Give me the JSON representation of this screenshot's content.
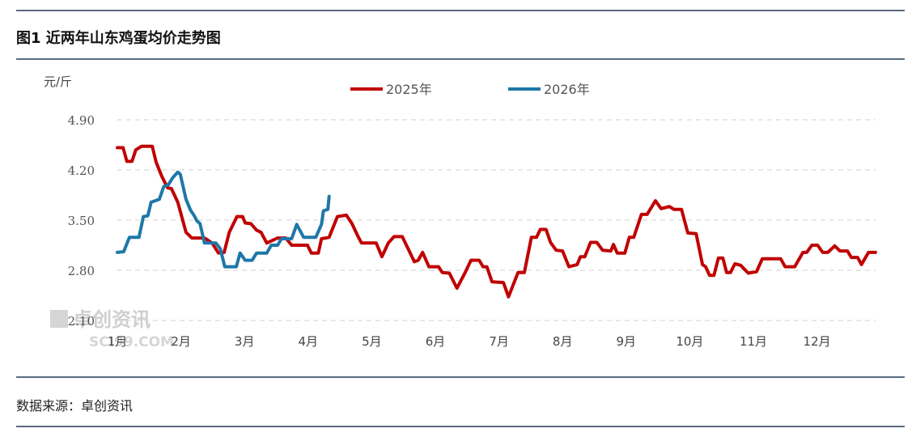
{
  "header": {
    "title": "图1 近两年山东鸡蛋均价走势图"
  },
  "footer": {
    "source": "数据来源：卓创资讯"
  },
  "watermark": {
    "text": "卓创资讯",
    "sub": "SCI99.COM"
  },
  "chart_data": {
    "type": "line",
    "title": "近两年山东鸡蛋均价走势图",
    "ylabel": "元/斤",
    "xlabel": "",
    "ylim": [
      2.1,
      4.9
    ],
    "yticks": [
      "4.90",
      "4.20",
      "3.50",
      "2.80",
      "2.10"
    ],
    "ytick_values": [
      4.9,
      4.2,
      3.5,
      2.8,
      2.1
    ],
    "x_unit": "months since start of January (0 = 1月)",
    "xlim": [
      0,
      11.95
    ],
    "categories": [
      "1月",
      "2月",
      "3月",
      "4月",
      "5月",
      "6月",
      "7月",
      "8月",
      "9月",
      "10月",
      "11月",
      "12月"
    ],
    "grid": true,
    "legend_position": "top-center",
    "series": [
      {
        "name": "2025年",
        "color": "#c00000",
        "x": [
          0,
          0.09,
          0.15,
          0.23,
          0.29,
          0.38,
          0.55,
          0.61,
          0.7,
          0.79,
          0.85,
          0.95,
          1.08,
          1.17,
          1.37,
          1.49,
          1.59,
          1.68,
          1.76,
          1.88,
          1.97,
          2.01,
          2.1,
          2.19,
          2.26,
          2.35,
          2.52,
          2.65,
          2.74,
          2.99,
          3.05,
          3.16,
          3.21,
          3.33,
          3.46,
          3.6,
          3.69,
          3.78,
          3.84,
          4.07,
          4.16,
          4.26,
          4.35,
          4.48,
          4.54,
          4.67,
          4.73,
          4.8,
          4.9,
          5.05,
          5.11,
          5.22,
          5.34,
          5.47,
          5.56,
          5.69,
          5.75,
          5.81,
          5.89,
          6.07,
          6.15,
          6.3,
          6.4,
          6.51,
          6.59,
          6.65,
          6.74,
          6.81,
          6.9,
          7.0,
          7.1,
          7.23,
          7.28,
          7.35,
          7.44,
          7.54,
          7.63,
          7.76,
          7.8,
          7.86,
          7.98,
          8.05,
          8.12,
          8.24,
          8.33,
          8.46,
          8.55,
          8.68,
          8.75,
          8.87,
          8.97,
          9.1,
          9.2,
          9.25,
          9.31,
          9.38,
          9.45,
          9.52,
          9.58,
          9.64,
          9.71,
          9.8,
          9.92,
          10.05,
          10.14,
          10.43,
          10.5,
          10.65,
          10.78,
          10.84,
          10.92,
          11.01,
          11.09,
          11.17,
          11.28,
          11.36,
          11.48,
          11.54,
          11.64,
          11.7,
          11.81,
          11.92
        ],
        "values": [
          4.51,
          4.51,
          4.32,
          4.32,
          4.48,
          4.53,
          4.53,
          4.31,
          4.11,
          3.95,
          3.94,
          3.75,
          3.33,
          3.25,
          3.25,
          3.18,
          3.04,
          3.05,
          3.33,
          3.55,
          3.55,
          3.46,
          3.45,
          3.36,
          3.33,
          3.18,
          3.25,
          3.25,
          3.15,
          3.15,
          3.04,
          3.04,
          3.24,
          3.26,
          3.55,
          3.57,
          3.45,
          3.28,
          3.18,
          3.18,
          2.99,
          3.18,
          3.27,
          3.27,
          3.16,
          2.92,
          2.94,
          3.05,
          2.85,
          2.85,
          2.77,
          2.76,
          2.55,
          2.77,
          2.94,
          2.94,
          2.85,
          2.85,
          2.64,
          2.63,
          2.43,
          2.77,
          2.77,
          3.26,
          3.26,
          3.37,
          3.37,
          3.19,
          3.08,
          3.07,
          2.85,
          2.88,
          2.99,
          2.99,
          3.19,
          3.19,
          3.08,
          3.07,
          3.16,
          3.04,
          3.04,
          3.26,
          3.26,
          3.58,
          3.58,
          3.77,
          3.66,
          3.69,
          3.65,
          3.65,
          3.32,
          3.31,
          2.88,
          2.85,
          2.73,
          2.73,
          2.97,
          2.97,
          2.77,
          2.77,
          2.89,
          2.87,
          2.76,
          2.78,
          2.96,
          2.96,
          2.85,
          2.85,
          3.05,
          3.05,
          3.15,
          3.15,
          3.05,
          3.05,
          3.14,
          3.07,
          3.07,
          2.98,
          2.98,
          2.88,
          3.05,
          3.05
        ]
      },
      {
        "name": "2026年",
        "color": "#1f77a8",
        "x": [
          0,
          0.1,
          0.19,
          0.34,
          0.41,
          0.48,
          0.53,
          0.66,
          0.73,
          0.8,
          0.87,
          0.95,
          0.99,
          1.08,
          1.15,
          1.21,
          1.25,
          1.3,
          1.37,
          1.55,
          1.62,
          1.69,
          1.87,
          1.93,
          2.01,
          2.12,
          2.19,
          2.35,
          2.42,
          2.52,
          2.58,
          2.74,
          2.82,
          2.93,
          3.12,
          3.21,
          3.24,
          3.31,
          3.33
        ],
        "values": [
          3.05,
          3.06,
          3.26,
          3.26,
          3.55,
          3.56,
          3.75,
          3.79,
          3.97,
          3.99,
          4.09,
          4.17,
          4.14,
          3.79,
          3.64,
          3.56,
          3.49,
          3.45,
          3.18,
          3.18,
          3.1,
          2.85,
          2.85,
          3.04,
          2.94,
          2.94,
          3.04,
          3.04,
          3.15,
          3.15,
          3.24,
          3.24,
          3.44,
          3.26,
          3.26,
          3.44,
          3.63,
          3.65,
          3.83
        ]
      }
    ]
  }
}
